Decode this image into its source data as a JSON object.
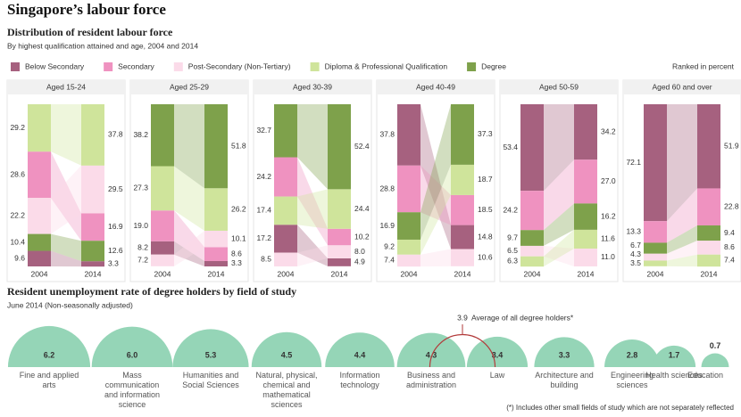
{
  "title": "Singapore’s labour force",
  "chart_data": [
    {
      "type": "ranked-stacked-bar",
      "title": "Distribution of resident labour force",
      "subtitle": "By highest qualification attained and age, 2004 and 2014",
      "note": "Ranked in percent",
      "ylim": [
        0,
        100
      ],
      "series": [
        {
          "name": "Below Secondary",
          "color": "#a6617f"
        },
        {
          "name": "Secondary",
          "color": "#ef92c0"
        },
        {
          "name": "Post-Secondary (Non-Tertiary)",
          "color": "#fbdbe9"
        },
        {
          "name": "Diploma & Professional Qualification",
          "color": "#cfe49b"
        },
        {
          "name": "Degree",
          "color": "#7ea14b"
        }
      ],
      "panels": [
        {
          "title": "Aged 15-24",
          "categories": [
            "2004",
            "2014"
          ],
          "values": [
            [
              9.6,
              28.6,
              22.2,
              29.2,
              10.4
            ],
            [
              3.3,
              16.9,
              29.5,
              37.8,
              12.6
            ]
          ]
        },
        {
          "title": "Aged 25-29",
          "categories": [
            "2004",
            "2014"
          ],
          "values": [
            [
              8.2,
              19.0,
              7.2,
              27.3,
              38.2
            ],
            [
              3.3,
              8.6,
              10.1,
              26.2,
              51.8
            ]
          ],
          "value_labels": [
            [
              "8.2",
              "19.0",
              "7.2",
              "27.3",
              "38.2"
            ],
            [
              "3.3",
              "8.6",
              "10.1",
              "26.2",
              "51.8"
            ]
          ]
        },
        {
          "title": "Aged 30-39",
          "categories": [
            "2004",
            "2014"
          ],
          "values": [
            [
              17.2,
              24.2,
              8.5,
              17.4,
              32.7
            ],
            [
              4.9,
              10.2,
              8.0,
              24.4,
              52.4
            ]
          ],
          "value_labels": [
            [
              "17.2",
              "24.2",
              "8.5",
              "17.4",
              "32.7"
            ],
            [
              "4.9",
              "10.2",
              "8.0",
              "24.4",
              "52.4"
            ]
          ]
        },
        {
          "title": "Aged 40-49",
          "categories": [
            "2004",
            "2014"
          ],
          "values": [
            [
              37.8,
              28.8,
              7.4,
              9.2,
              16.9
            ],
            [
              14.8,
              18.5,
              10.6,
              18.7,
              37.3
            ]
          ]
        },
        {
          "title": "Aged 50-59",
          "categories": [
            "2004",
            "2014"
          ],
          "values": [
            [
              53.4,
              24.2,
              6.5,
              6.3,
              9.7
            ],
            [
              34.2,
              27.0,
              11.0,
              11.6,
              16.2
            ]
          ],
          "value_labels": [
            [
              "53.4",
              "24.2",
              "6.5",
              "6.3",
              "9.7"
            ],
            [
              "34.2",
              "27.0",
              "11.0",
              "11.6",
              "16.2"
            ]
          ]
        },
        {
          "title": "Aged 60 and over",
          "categories": [
            "2004",
            "2014"
          ],
          "values": [
            [
              72.1,
              13.3,
              4.3,
              3.5,
              6.7
            ],
            [
              51.9,
              22.8,
              8.6,
              7.4,
              9.4
            ]
          ]
        }
      ]
    },
    {
      "type": "semicircle-bubble",
      "title": "Resident unemployment rate of degree holders by field of study",
      "subtitle": "June 2014 (Non-seasonally adjusted)",
      "color": "#95d5b7",
      "categories": [
        "Fine and applied arts",
        "Mass communication and information science",
        "Humanities and Social Sciences",
        "Natural, physical, chemical and mathematical sciences",
        "Information technology",
        "Business and administration",
        "Law",
        "Architecture and building",
        "Engineering sciences",
        "Health sciences",
        "Education"
      ],
      "values": [
        6.2,
        6.0,
        5.3,
        4.5,
        4.4,
        4.3,
        3.4,
        3.3,
        2.8,
        1.7,
        0.7
      ],
      "value_labels": [
        "6.2",
        "6.0",
        "5.3",
        "4.5",
        "4.4",
        "4.3",
        "3.4",
        "3.3",
        "2.8",
        "1.7",
        "0.7"
      ],
      "average": {
        "value": 3.9,
        "label": "Average of all degree holders*",
        "color": "#b23a3a"
      },
      "footnote": "(*) Includes other small fields of study which are not separately reflected"
    }
  ]
}
